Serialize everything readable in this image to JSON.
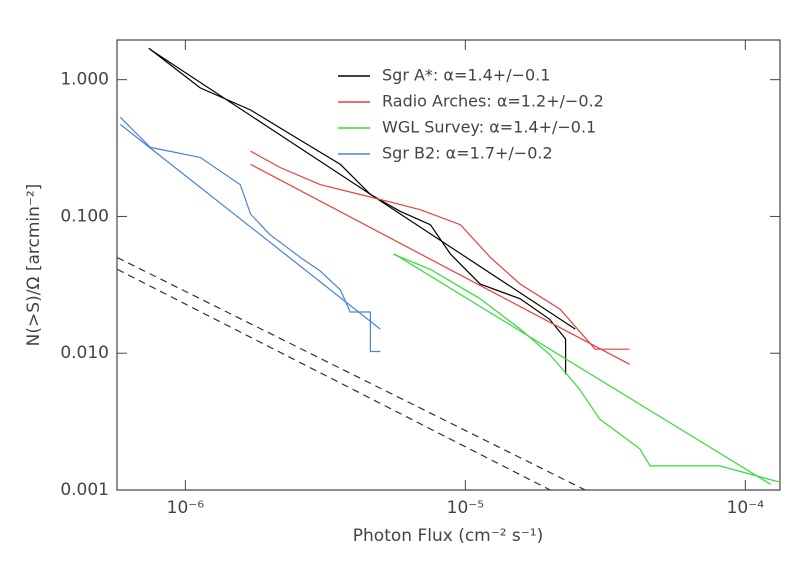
{
  "chart_data": {
    "type": "line",
    "xlabel": "Photon Flux (cm⁻² s⁻¹)",
    "ylabel": "N(>S)/Ω [arcmin⁻²]",
    "xscale": "log",
    "yscale": "log",
    "xlim": [
      5.7e-07,
      0.000133
    ],
    "ylim": [
      0.001,
      1.95
    ],
    "xticks": [
      {
        "value": 1e-06,
        "label": "10⁻⁶"
      },
      {
        "value": 1e-05,
        "label": "10⁻⁵"
      },
      {
        "value": 0.0001,
        "label": "10⁻⁴"
      }
    ],
    "yticks": [
      {
        "value": 1,
        "label": "1.000"
      },
      {
        "value": 0.1,
        "label": "0.100"
      },
      {
        "value": 0.01,
        "label": "0.010"
      },
      {
        "value": 0.001,
        "label": "0.001"
      }
    ],
    "legend": "upper right",
    "series": [
      {
        "name": "Sgr A*: α=1.4+/−0.1",
        "color": "#000000",
        "x": [
          7.4e-07,
          1.13e-06,
          1.71e-06,
          2.58e-06,
          3.58e-06,
          4.58e-06,
          5.85e-06,
          7.5e-06,
          8.86e-06,
          1.13e-05,
          1.57e-05,
          2e-05,
          2.28e-05,
          2.28e-05
        ],
        "values": [
          1.7,
          0.87,
          0.6,
          0.36,
          0.24,
          0.145,
          0.109,
          0.087,
          0.053,
          0.032,
          0.025,
          0.0177,
          0.0127,
          0.007
        ],
        "fit_x": [
          7.5e-07,
          2.47e-05
        ],
        "fit_values": [
          1.66,
          0.015
        ]
      },
      {
        "name": "Radio Arches: α=1.2+/−0.2",
        "color": "#e8413c",
        "x": [
          1.71e-06,
          2.18e-06,
          3.03e-06,
          4.97e-06,
          6.9e-06,
          9.6e-06,
          1.23e-05,
          1.57e-05,
          2.18e-05,
          2.91e-05,
          3.86e-05
        ],
        "values": [
          0.3,
          0.228,
          0.171,
          0.133,
          0.112,
          0.087,
          0.05,
          0.032,
          0.021,
          0.0107,
          0.0107
        ],
        "fit_x": [
          1.71e-06,
          3.86e-05
        ],
        "fit_values": [
          0.24,
          0.0083
        ]
      },
      {
        "name": "WGL Survey: α=1.4+/−0.1",
        "color": "#33dd33",
        "x": [
          5.53e-06,
          7.5e-06,
          1.13e-05,
          1.57e-05,
          2e-05,
          2.55e-05,
          3.02e-05,
          4.2e-05,
          4.57e-05,
          8.1e-05,
          0.000133
        ],
        "values": [
          0.053,
          0.041,
          0.025,
          0.015,
          0.0098,
          0.0055,
          0.0033,
          0.002,
          0.0015,
          0.0015,
          0.00114
        ],
        "fit_x": [
          5.6e-06,
          0.000123
        ],
        "fit_values": [
          0.053,
          0.0011
        ]
      },
      {
        "name": "Sgr B2: α=1.7+/−0.2",
        "color": "#4a84d8",
        "x": [
          5.86e-07,
          7.5e-07,
          1.13e-06,
          1.57e-06,
          1.71e-06,
          2e-06,
          2.58e-06,
          3.03e-06,
          3.58e-06,
          3.88e-06,
          4.58e-06,
          4.58e-06,
          4.97e-06
        ],
        "values": [
          0.53,
          0.32,
          0.27,
          0.171,
          0.104,
          0.074,
          0.05,
          0.04,
          0.029,
          0.02,
          0.02,
          0.0103,
          0.0103
        ],
        "fit_x": [
          5.86e-07,
          4.97e-06
        ],
        "fit_values": [
          0.47,
          0.015
        ]
      }
    ],
    "reference_lines": [
      {
        "color": "#333333",
        "x": [
          5.72e-07,
          2.68e-05
        ],
        "values": [
          0.05,
          0.001
        ]
      },
      {
        "color": "#333333",
        "x": [
          5.72e-07,
          2.01e-05
        ],
        "values": [
          0.041,
          0.001
        ]
      }
    ]
  }
}
